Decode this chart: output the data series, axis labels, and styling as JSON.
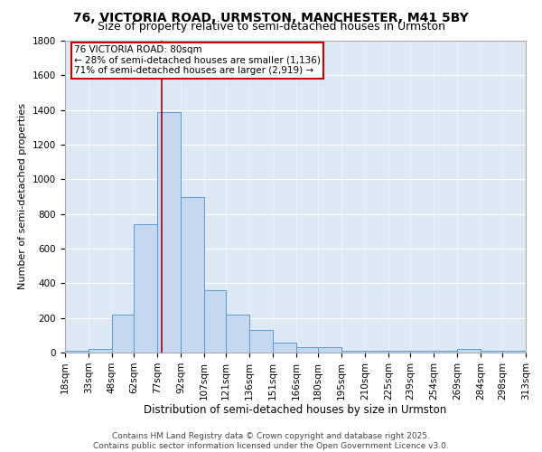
{
  "title": "76, VICTORIA ROAD, URMSTON, MANCHESTER, M41 5BY",
  "subtitle": "Size of property relative to semi-detached houses in Urmston",
  "xlabel": "Distribution of semi-detached houses by size in Urmston",
  "ylabel": "Number of semi-detached properties",
  "bin_edges": [
    18,
    33,
    48,
    62,
    77,
    92,
    107,
    121,
    136,
    151,
    166,
    180,
    195,
    210,
    225,
    239,
    254,
    269,
    284,
    298,
    313
  ],
  "bar_heights": [
    10,
    20,
    220,
    740,
    1390,
    900,
    360,
    220,
    130,
    60,
    30,
    30,
    10,
    10,
    10,
    10,
    10,
    20,
    10,
    10
  ],
  "bar_color": "#c5d8f0",
  "bar_edge_color": "#5b9bd5",
  "property_size": 80,
  "red_line_color": "#aa0000",
  "annotation_text": "76 VICTORIA ROAD: 80sqm\n← 28% of semi-detached houses are smaller (1,136)\n71% of semi-detached houses are larger (2,919) →",
  "annotation_box_color": "#ffffff",
  "annotation_box_edge_color": "#cc0000",
  "ylim": [
    0,
    1800
  ],
  "yticks": [
    0,
    200,
    400,
    600,
    800,
    1000,
    1200,
    1400,
    1600,
    1800
  ],
  "background_color": "#dde8f5",
  "footer_text": "Contains HM Land Registry data © Crown copyright and database right 2025.\nContains public sector information licensed under the Open Government Licence v3.0.",
  "title_fontsize": 10,
  "subtitle_fontsize": 9,
  "xlabel_fontsize": 8.5,
  "ylabel_fontsize": 8,
  "tick_fontsize": 7.5,
  "annotation_fontsize": 7.5,
  "footer_fontsize": 6.5
}
